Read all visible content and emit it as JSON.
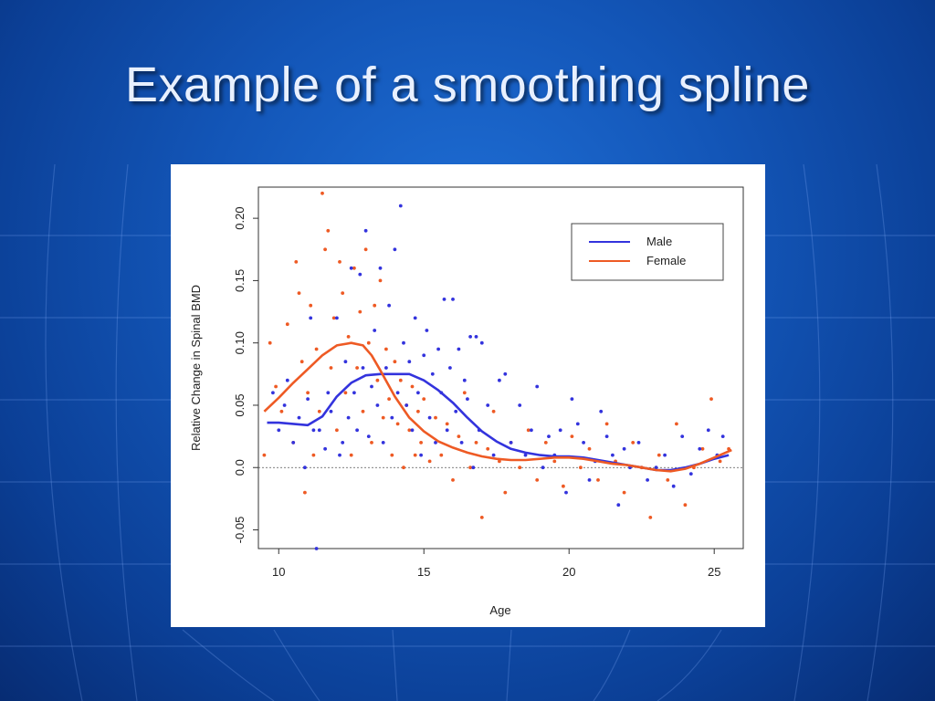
{
  "slide": {
    "title": "Example of a smoothing spline"
  },
  "chart_data": {
    "type": "scatter",
    "title": "",
    "xlabel": "Age",
    "ylabel": "Relative Change in Spinal BMD",
    "xlim": [
      9.3,
      26.0
    ],
    "ylim": [
      -0.065,
      0.225
    ],
    "xticks": [
      10,
      15,
      20,
      25
    ],
    "yticks": [
      -0.05,
      0.0,
      0.05,
      0.1,
      0.15,
      0.2
    ],
    "ytick_labels": [
      "-0.05",
      "0.0",
      "0.05",
      "0.10",
      "0.15",
      "0.20"
    ],
    "reference_line_y": 0.0,
    "legend": {
      "position": "top-right",
      "entries": [
        "Male",
        "Female"
      ]
    },
    "colors": {
      "male": "#3333dd",
      "female": "#ee5a24"
    },
    "series": [
      {
        "name": "Male",
        "curve": [
          [
            9.6,
            0.036
          ],
          [
            10.0,
            0.036
          ],
          [
            10.5,
            0.035
          ],
          [
            11.0,
            0.034
          ],
          [
            11.5,
            0.041
          ],
          [
            12.0,
            0.057
          ],
          [
            12.5,
            0.068
          ],
          [
            13.0,
            0.074
          ],
          [
            13.5,
            0.075
          ],
          [
            14.0,
            0.075
          ],
          [
            14.5,
            0.075
          ],
          [
            15.0,
            0.07
          ],
          [
            15.5,
            0.062
          ],
          [
            16.0,
            0.052
          ],
          [
            16.5,
            0.04
          ],
          [
            17.0,
            0.029
          ],
          [
            17.5,
            0.021
          ],
          [
            18.0,
            0.015
          ],
          [
            18.5,
            0.012
          ],
          [
            19.0,
            0.01
          ],
          [
            19.5,
            0.009
          ],
          [
            20.0,
            0.009
          ],
          [
            20.5,
            0.008
          ],
          [
            21.0,
            0.006
          ],
          [
            21.5,
            0.004
          ],
          [
            22.0,
            0.002
          ],
          [
            22.5,
            0.0
          ],
          [
            23.0,
            -0.002
          ],
          [
            23.5,
            -0.002
          ],
          [
            24.0,
            0.0
          ],
          [
            24.5,
            0.003
          ],
          [
            25.0,
            0.007
          ],
          [
            25.5,
            0.01
          ]
        ],
        "points": [
          [
            9.8,
            0.06
          ],
          [
            10.0,
            0.03
          ],
          [
            10.2,
            0.05
          ],
          [
            10.3,
            0.07
          ],
          [
            10.5,
            0.02
          ],
          [
            10.7,
            0.04
          ],
          [
            10.9,
            0.0
          ],
          [
            11.0,
            0.055
          ],
          [
            11.1,
            0.12
          ],
          [
            11.2,
            0.03
          ],
          [
            11.3,
            -0.065
          ],
          [
            11.4,
            0.03
          ],
          [
            11.6,
            0.015
          ],
          [
            11.7,
            0.06
          ],
          [
            11.8,
            0.045
          ],
          [
            12.0,
            0.12
          ],
          [
            12.1,
            0.01
          ],
          [
            12.2,
            0.02
          ],
          [
            12.3,
            0.085
          ],
          [
            12.4,
            0.04
          ],
          [
            12.5,
            0.16
          ],
          [
            12.6,
            0.06
          ],
          [
            12.7,
            0.03
          ],
          [
            12.8,
            0.155
          ],
          [
            12.9,
            0.08
          ],
          [
            13.0,
            0.19
          ],
          [
            13.1,
            0.025
          ],
          [
            13.2,
            0.065
          ],
          [
            13.3,
            0.11
          ],
          [
            13.4,
            0.05
          ],
          [
            13.5,
            0.16
          ],
          [
            13.6,
            0.02
          ],
          [
            13.7,
            0.08
          ],
          [
            13.8,
            0.13
          ],
          [
            13.9,
            0.04
          ],
          [
            14.0,
            0.175
          ],
          [
            14.1,
            0.06
          ],
          [
            14.2,
            0.21
          ],
          [
            14.3,
            0.1
          ],
          [
            14.4,
            0.05
          ],
          [
            14.5,
            0.085
          ],
          [
            14.6,
            0.03
          ],
          [
            14.7,
            0.12
          ],
          [
            14.8,
            0.06
          ],
          [
            14.9,
            0.01
          ],
          [
            15.0,
            0.09
          ],
          [
            15.1,
            0.11
          ],
          [
            15.2,
            0.04
          ],
          [
            15.3,
            0.075
          ],
          [
            15.4,
            0.02
          ],
          [
            15.5,
            0.095
          ],
          [
            15.6,
            0.06
          ],
          [
            15.7,
            0.135
          ],
          [
            15.8,
            0.03
          ],
          [
            15.9,
            0.08
          ],
          [
            16.0,
            0.135
          ],
          [
            16.1,
            0.045
          ],
          [
            16.2,
            0.095
          ],
          [
            16.3,
            0.02
          ],
          [
            16.4,
            0.07
          ],
          [
            16.5,
            0.055
          ],
          [
            16.6,
            0.105
          ],
          [
            16.7,
            0.0
          ],
          [
            16.8,
            0.105
          ],
          [
            16.9,
            0.03
          ],
          [
            17.0,
            0.1
          ],
          [
            17.2,
            0.05
          ],
          [
            17.4,
            0.01
          ],
          [
            17.6,
            0.07
          ],
          [
            17.8,
            0.075
          ],
          [
            18.0,
            0.02
          ],
          [
            18.3,
            0.05
          ],
          [
            18.5,
            0.01
          ],
          [
            18.7,
            0.03
          ],
          [
            18.9,
            0.065
          ],
          [
            19.1,
            0.0
          ],
          [
            19.3,
            0.025
          ],
          [
            19.5,
            0.01
          ],
          [
            19.7,
            0.03
          ],
          [
            19.9,
            -0.02
          ],
          [
            20.1,
            0.055
          ],
          [
            20.3,
            0.035
          ],
          [
            20.5,
            0.02
          ],
          [
            20.7,
            -0.01
          ],
          [
            20.9,
            0.005
          ],
          [
            21.1,
            0.045
          ],
          [
            21.3,
            0.025
          ],
          [
            21.5,
            0.01
          ],
          [
            21.7,
            -0.03
          ],
          [
            21.9,
            0.015
          ],
          [
            22.1,
            0.0
          ],
          [
            22.4,
            0.02
          ],
          [
            22.7,
            -0.01
          ],
          [
            23.0,
            0.0
          ],
          [
            23.3,
            0.01
          ],
          [
            23.6,
            -0.015
          ],
          [
            23.9,
            0.025
          ],
          [
            24.2,
            -0.005
          ],
          [
            24.5,
            0.015
          ],
          [
            24.8,
            0.03
          ],
          [
            25.1,
            0.01
          ],
          [
            25.3,
            0.025
          ]
        ]
      },
      {
        "name": "Female",
        "curve": [
          [
            9.5,
            0.045
          ],
          [
            10.0,
            0.056
          ],
          [
            10.5,
            0.068
          ],
          [
            11.0,
            0.079
          ],
          [
            11.5,
            0.09
          ],
          [
            12.0,
            0.098
          ],
          [
            12.5,
            0.1
          ],
          [
            12.9,
            0.098
          ],
          [
            13.2,
            0.09
          ],
          [
            13.5,
            0.078
          ],
          [
            14.0,
            0.057
          ],
          [
            14.5,
            0.04
          ],
          [
            15.0,
            0.029
          ],
          [
            15.5,
            0.021
          ],
          [
            16.0,
            0.016
          ],
          [
            16.5,
            0.012
          ],
          [
            17.0,
            0.009
          ],
          [
            17.5,
            0.007
          ],
          [
            18.0,
            0.006
          ],
          [
            18.5,
            0.006
          ],
          [
            19.0,
            0.007
          ],
          [
            19.5,
            0.008
          ],
          [
            20.0,
            0.008
          ],
          [
            20.5,
            0.007
          ],
          [
            21.0,
            0.005
          ],
          [
            21.5,
            0.003
          ],
          [
            22.0,
            0.002
          ],
          [
            22.5,
            0.0
          ],
          [
            23.0,
            -0.002
          ],
          [
            23.5,
            -0.003
          ],
          [
            24.0,
            -0.001
          ],
          [
            24.5,
            0.003
          ],
          [
            25.0,
            0.008
          ],
          [
            25.6,
            0.014
          ]
        ],
        "points": [
          [
            9.5,
            0.01
          ],
          [
            9.7,
            0.1
          ],
          [
            9.9,
            0.065
          ],
          [
            10.1,
            0.045
          ],
          [
            10.3,
            0.115
          ],
          [
            10.5,
            0.02
          ],
          [
            10.6,
            0.165
          ],
          [
            10.7,
            0.14
          ],
          [
            10.8,
            0.085
          ],
          [
            10.9,
            -0.02
          ],
          [
            11.0,
            0.06
          ],
          [
            11.1,
            0.13
          ],
          [
            11.2,
            0.01
          ],
          [
            11.3,
            0.095
          ],
          [
            11.4,
            0.045
          ],
          [
            11.5,
            0.22
          ],
          [
            11.6,
            0.175
          ],
          [
            11.7,
            0.19
          ],
          [
            11.8,
            0.08
          ],
          [
            11.9,
            0.12
          ],
          [
            12.0,
            0.03
          ],
          [
            12.1,
            0.165
          ],
          [
            12.2,
            0.14
          ],
          [
            12.3,
            0.06
          ],
          [
            12.4,
            0.105
          ],
          [
            12.5,
            0.01
          ],
          [
            12.6,
            0.16
          ],
          [
            12.7,
            0.08
          ],
          [
            12.8,
            0.125
          ],
          [
            12.9,
            0.045
          ],
          [
            13.0,
            0.175
          ],
          [
            13.1,
            0.1
          ],
          [
            13.2,
            0.02
          ],
          [
            13.3,
            0.13
          ],
          [
            13.4,
            0.07
          ],
          [
            13.5,
            0.15
          ],
          [
            13.6,
            0.04
          ],
          [
            13.7,
            0.095
          ],
          [
            13.8,
            0.055
          ],
          [
            13.9,
            0.01
          ],
          [
            14.0,
            0.085
          ],
          [
            14.1,
            0.035
          ],
          [
            14.2,
            0.07
          ],
          [
            14.3,
            0.0
          ],
          [
            14.4,
            0.05
          ],
          [
            14.5,
            0.03
          ],
          [
            14.6,
            0.065
          ],
          [
            14.7,
            0.01
          ],
          [
            14.8,
            0.045
          ],
          [
            14.9,
            0.02
          ],
          [
            15.0,
            0.055
          ],
          [
            15.2,
            0.005
          ],
          [
            15.4,
            0.04
          ],
          [
            15.6,
            0.01
          ],
          [
            15.8,
            0.035
          ],
          [
            16.0,
            -0.01
          ],
          [
            16.2,
            0.025
          ],
          [
            16.4,
            0.06
          ],
          [
            16.6,
            0.0
          ],
          [
            16.8,
            0.02
          ],
          [
            17.0,
            -0.04
          ],
          [
            17.2,
            0.015
          ],
          [
            17.4,
            0.045
          ],
          [
            17.6,
            0.005
          ],
          [
            17.8,
            -0.02
          ],
          [
            18.0,
            0.02
          ],
          [
            18.3,
            0.0
          ],
          [
            18.6,
            0.03
          ],
          [
            18.9,
            -0.01
          ],
          [
            19.2,
            0.02
          ],
          [
            19.5,
            0.005
          ],
          [
            19.8,
            -0.015
          ],
          [
            20.1,
            0.025
          ],
          [
            20.4,
            0.0
          ],
          [
            20.7,
            0.015
          ],
          [
            21.0,
            -0.01
          ],
          [
            21.3,
            0.035
          ],
          [
            21.6,
            0.005
          ],
          [
            21.9,
            -0.02
          ],
          [
            22.2,
            0.02
          ],
          [
            22.5,
            0.0
          ],
          [
            22.8,
            -0.04
          ],
          [
            23.1,
            0.01
          ],
          [
            23.4,
            -0.01
          ],
          [
            23.7,
            0.035
          ],
          [
            24.0,
            -0.03
          ],
          [
            24.3,
            0.0
          ],
          [
            24.6,
            0.015
          ],
          [
            24.9,
            0.055
          ],
          [
            25.2,
            0.005
          ],
          [
            25.5,
            0.015
          ]
        ]
      }
    ]
  }
}
